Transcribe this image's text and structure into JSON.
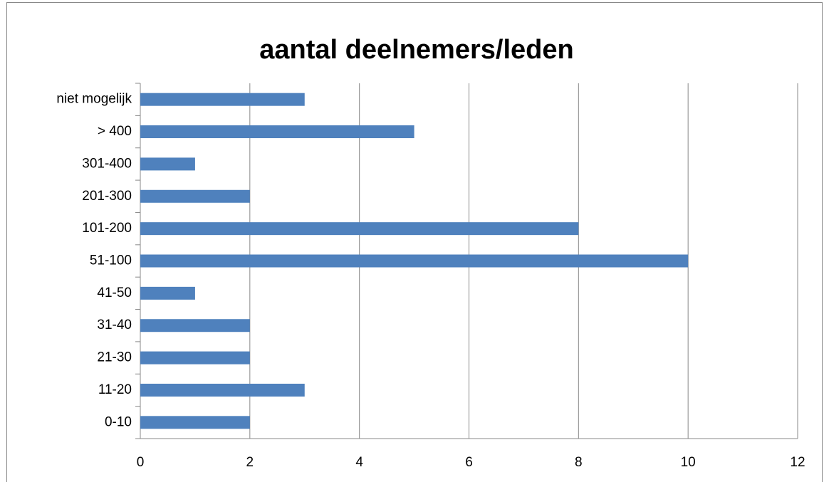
{
  "chart_data": {
    "type": "bar",
    "orientation": "horizontal",
    "title": "aantal deelnemers/leden",
    "categories": [
      "0-10",
      "11-20",
      "21-30",
      "31-40",
      "41-50",
      "51-100",
      "101-200",
      "201-300",
      "301-400",
      "> 400",
      "niet mogelijk"
    ],
    "values": [
      2,
      3,
      2,
      2,
      1,
      10,
      8,
      2,
      1,
      5,
      3
    ],
    "color": "#4f81bd",
    "xlim": [
      0,
      12
    ],
    "xticks": [
      0,
      2,
      4,
      6,
      8,
      10,
      12
    ],
    "grid": true
  }
}
